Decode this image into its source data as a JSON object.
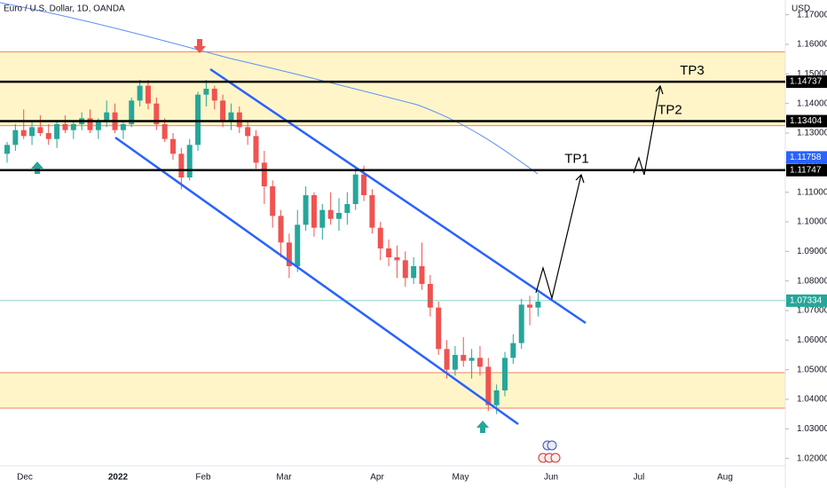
{
  "chart_data": {
    "type": "candlestick",
    "title": "Euro / U.S. Dollar, 1D, OANDA",
    "y_axis_label": "USD",
    "colors": {
      "up": "#26a69a",
      "down": "#ef5350"
    },
    "ylim": [
      1.0175,
      1.175
    ],
    "yticks": [
      {
        "value": 1.17,
        "label": "1.17000"
      },
      {
        "value": 1.16,
        "label": "1.16000"
      },
      {
        "value": 1.15,
        "label": "1.15000"
      },
      {
        "value": 1.14,
        "label": "1.14000"
      },
      {
        "value": 1.13,
        "label": "1.13000"
      },
      {
        "value": 1.12,
        "label": "1.12000"
      },
      {
        "value": 1.11,
        "label": "1.11000"
      },
      {
        "value": 1.1,
        "label": "1.10000"
      },
      {
        "value": 1.09,
        "label": "1.09000"
      },
      {
        "value": 1.08,
        "label": "1.08000"
      },
      {
        "value": 1.07,
        "label": "1.07000"
      },
      {
        "value": 1.06,
        "label": "1.06000"
      },
      {
        "value": 1.05,
        "label": "1.05000"
      },
      {
        "value": 1.04,
        "label": "1.04000"
      },
      {
        "value": 1.03,
        "label": "1.03000"
      },
      {
        "value": 1.02,
        "label": "1.02000"
      }
    ],
    "x_labels": [
      "Dec",
      "2022",
      "Feb",
      "Mar",
      "Apr",
      "May",
      "Jun",
      "Jul",
      "Aug"
    ],
    "zones": [
      [
        1.1325,
        1.1575
      ],
      [
        1.037,
        1.049
      ]
    ],
    "levels": [
      {
        "value": 1.14737,
        "color": "#000000",
        "annotation": "TP3"
      },
      {
        "value": 1.13404,
        "color": "#000000",
        "annotation": "TP2"
      },
      {
        "value": 1.11747,
        "color": "#000000",
        "annotation": "TP1"
      }
    ],
    "markers": [
      {
        "value": 1.11758,
        "color": "#2962ff"
      },
      {
        "value": 1.07334,
        "color": "#26a69a"
      }
    ],
    "open": [
      1.123,
      1.126,
      1.131,
      1.129,
      1.132,
      1.13,
      1.128,
      1.133,
      1.131,
      1.133,
      1.135,
      1.131,
      1.134,
      1.137,
      1.131,
      1.133,
      1.141,
      1.146,
      1.14,
      1.133,
      1.128,
      1.123,
      1.115,
      1.126,
      1.143,
      1.145,
      1.141,
      1.134,
      1.137,
      1.132,
      1.129,
      1.12,
      1.112,
      1.102,
      1.093,
      1.085,
      1.099,
      1.109,
      1.098,
      1.104,
      1.101,
      1.103,
      1.106,
      1.116,
      1.109,
      1.098,
      1.091,
      1.088,
      1.087,
      1.081,
      1.085,
      1.079,
      1.071,
      1.057,
      1.05,
      1.055,
      1.053,
      1.054,
      1.051,
      1.038,
      1.043,
      1.054,
      1.059,
      1.072,
      1.071
    ],
    "high": [
      1.127,
      1.133,
      1.138,
      1.134,
      1.136,
      1.133,
      1.134,
      1.136,
      1.134,
      1.137,
      1.138,
      1.135,
      1.141,
      1.14,
      1.134,
      1.142,
      1.148,
      1.148,
      1.142,
      1.135,
      1.13,
      1.125,
      1.128,
      1.144,
      1.148,
      1.146,
      1.143,
      1.14,
      1.139,
      1.134,
      1.131,
      1.124,
      1.114,
      1.104,
      1.096,
      1.104,
      1.112,
      1.11,
      1.106,
      1.11,
      1.108,
      1.11,
      1.118,
      1.119,
      1.111,
      1.1,
      1.094,
      1.092,
      1.09,
      1.088,
      1.093,
      1.082,
      1.073,
      1.06,
      1.058,
      1.061,
      1.057,
      1.058,
      1.054,
      1.045,
      1.056,
      1.062,
      1.074,
      1.075,
      1.076
    ],
    "low": [
      1.12,
      1.124,
      1.128,
      1.126,
      1.129,
      1.126,
      1.125,
      1.13,
      1.128,
      1.131,
      1.13,
      1.128,
      1.132,
      1.13,
      1.128,
      1.132,
      1.139,
      1.138,
      1.131,
      1.127,
      1.121,
      1.111,
      1.114,
      1.124,
      1.139,
      1.138,
      1.132,
      1.131,
      1.13,
      1.126,
      1.118,
      1.106,
      1.098,
      1.088,
      1.081,
      1.083,
      1.097,
      1.095,
      1.094,
      1.099,
      1.097,
      1.099,
      1.104,
      1.107,
      1.096,
      1.087,
      1.085,
      1.081,
      1.078,
      1.079,
      1.077,
      1.068,
      1.055,
      1.047,
      1.048,
      1.051,
      1.047,
      1.048,
      1.036,
      1.035,
      1.041,
      1.052,
      1.057,
      1.065,
      1.068
    ],
    "close": [
      1.126,
      1.131,
      1.129,
      1.132,
      1.13,
      1.128,
      1.133,
      1.131,
      1.133,
      1.135,
      1.131,
      1.134,
      1.137,
      1.131,
      1.133,
      1.141,
      1.146,
      1.14,
      1.133,
      1.128,
      1.123,
      1.115,
      1.126,
      1.143,
      1.145,
      1.141,
      1.134,
      1.137,
      1.132,
      1.129,
      1.12,
      1.112,
      1.102,
      1.093,
      1.085,
      1.099,
      1.109,
      1.098,
      1.104,
      1.101,
      1.103,
      1.106,
      1.116,
      1.109,
      1.098,
      1.091,
      1.088,
      1.087,
      1.081,
      1.085,
      1.079,
      1.071,
      1.057,
      1.05,
      1.055,
      1.053,
      1.054,
      1.051,
      1.038,
      1.043,
      1.054,
      1.059,
      1.072,
      1.071,
      1.073
    ]
  }
}
